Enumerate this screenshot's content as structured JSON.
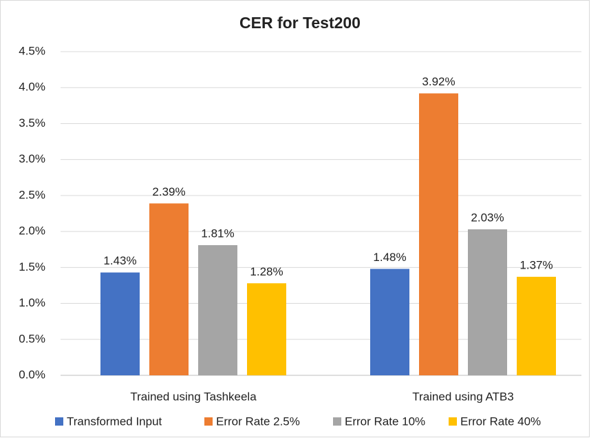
{
  "chart_data": {
    "type": "bar",
    "title": "CER for Test200",
    "categories": [
      "Trained using Tashkeela",
      "Trained using ATB3"
    ],
    "series": [
      {
        "name": "Transformed Input",
        "color": "#4472c4",
        "values": [
          1.43,
          1.48
        ],
        "value_labels": [
          "1.43%",
          "1.48%"
        ]
      },
      {
        "name": "Error Rate 2.5%",
        "color": "#ed7d31",
        "values": [
          2.39,
          3.92
        ],
        "value_labels": [
          "2.39%",
          "3.92%"
        ]
      },
      {
        "name": "Error Rate 10%",
        "color": "#a5a5a5",
        "values": [
          1.81,
          2.03
        ],
        "value_labels": [
          "1.81%",
          "2.03%"
        ]
      },
      {
        "name": "Error Rate 40%",
        "color": "#ffc000",
        "values": [
          1.28,
          1.37
        ],
        "value_labels": [
          "1.28%",
          "1.37%"
        ]
      }
    ],
    "ylim": [
      0,
      4.5
    ],
    "yticks": [
      {
        "value": 0,
        "label": "0.0%"
      },
      {
        "value": 0.5,
        "label": "0.5%"
      },
      {
        "value": 1,
        "label": "1.0%"
      },
      {
        "value": 1.5,
        "label": "1.5%"
      },
      {
        "value": 2,
        "label": "2.0%"
      },
      {
        "value": 2.5,
        "label": "2.5%"
      },
      {
        "value": 3,
        "label": "3.0%"
      },
      {
        "value": 3.5,
        "label": "3.5%"
      },
      {
        "value": 4,
        "label": "4.0%"
      },
      {
        "value": 4.5,
        "label": "4.5%"
      }
    ],
    "grid": true,
    "legend": "bottom"
  }
}
